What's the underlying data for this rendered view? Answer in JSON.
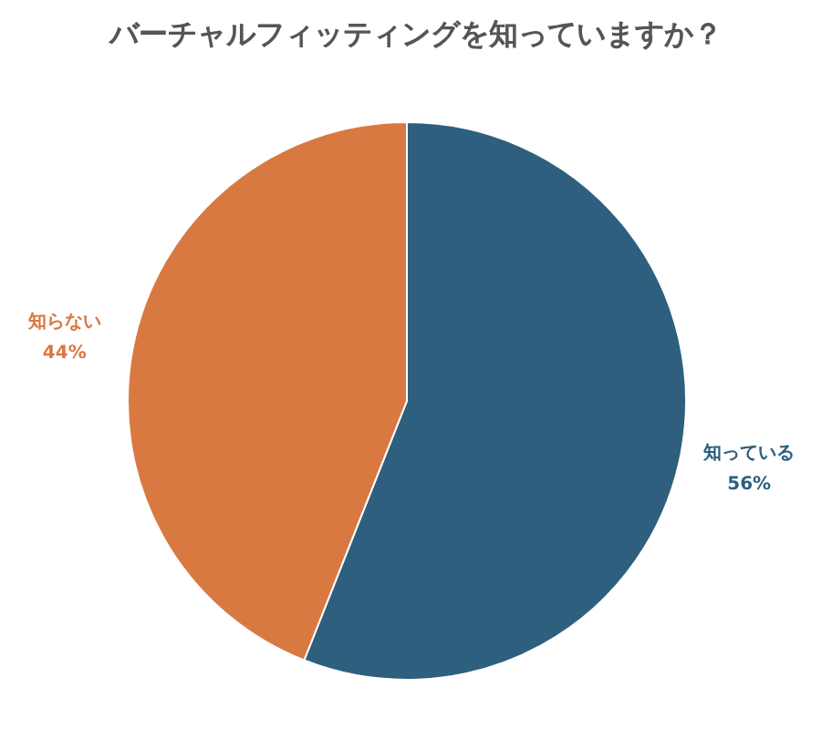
{
  "chart_data": {
    "type": "pie",
    "title": "バーチャルフィッティングを知っていますか？",
    "categories": [
      "知っている",
      "知らない"
    ],
    "values": [
      56,
      44
    ],
    "value_labels": [
      "56%",
      "44%"
    ],
    "colors": [
      "#2e5f7e",
      "#d97942"
    ],
    "legend": false
  }
}
